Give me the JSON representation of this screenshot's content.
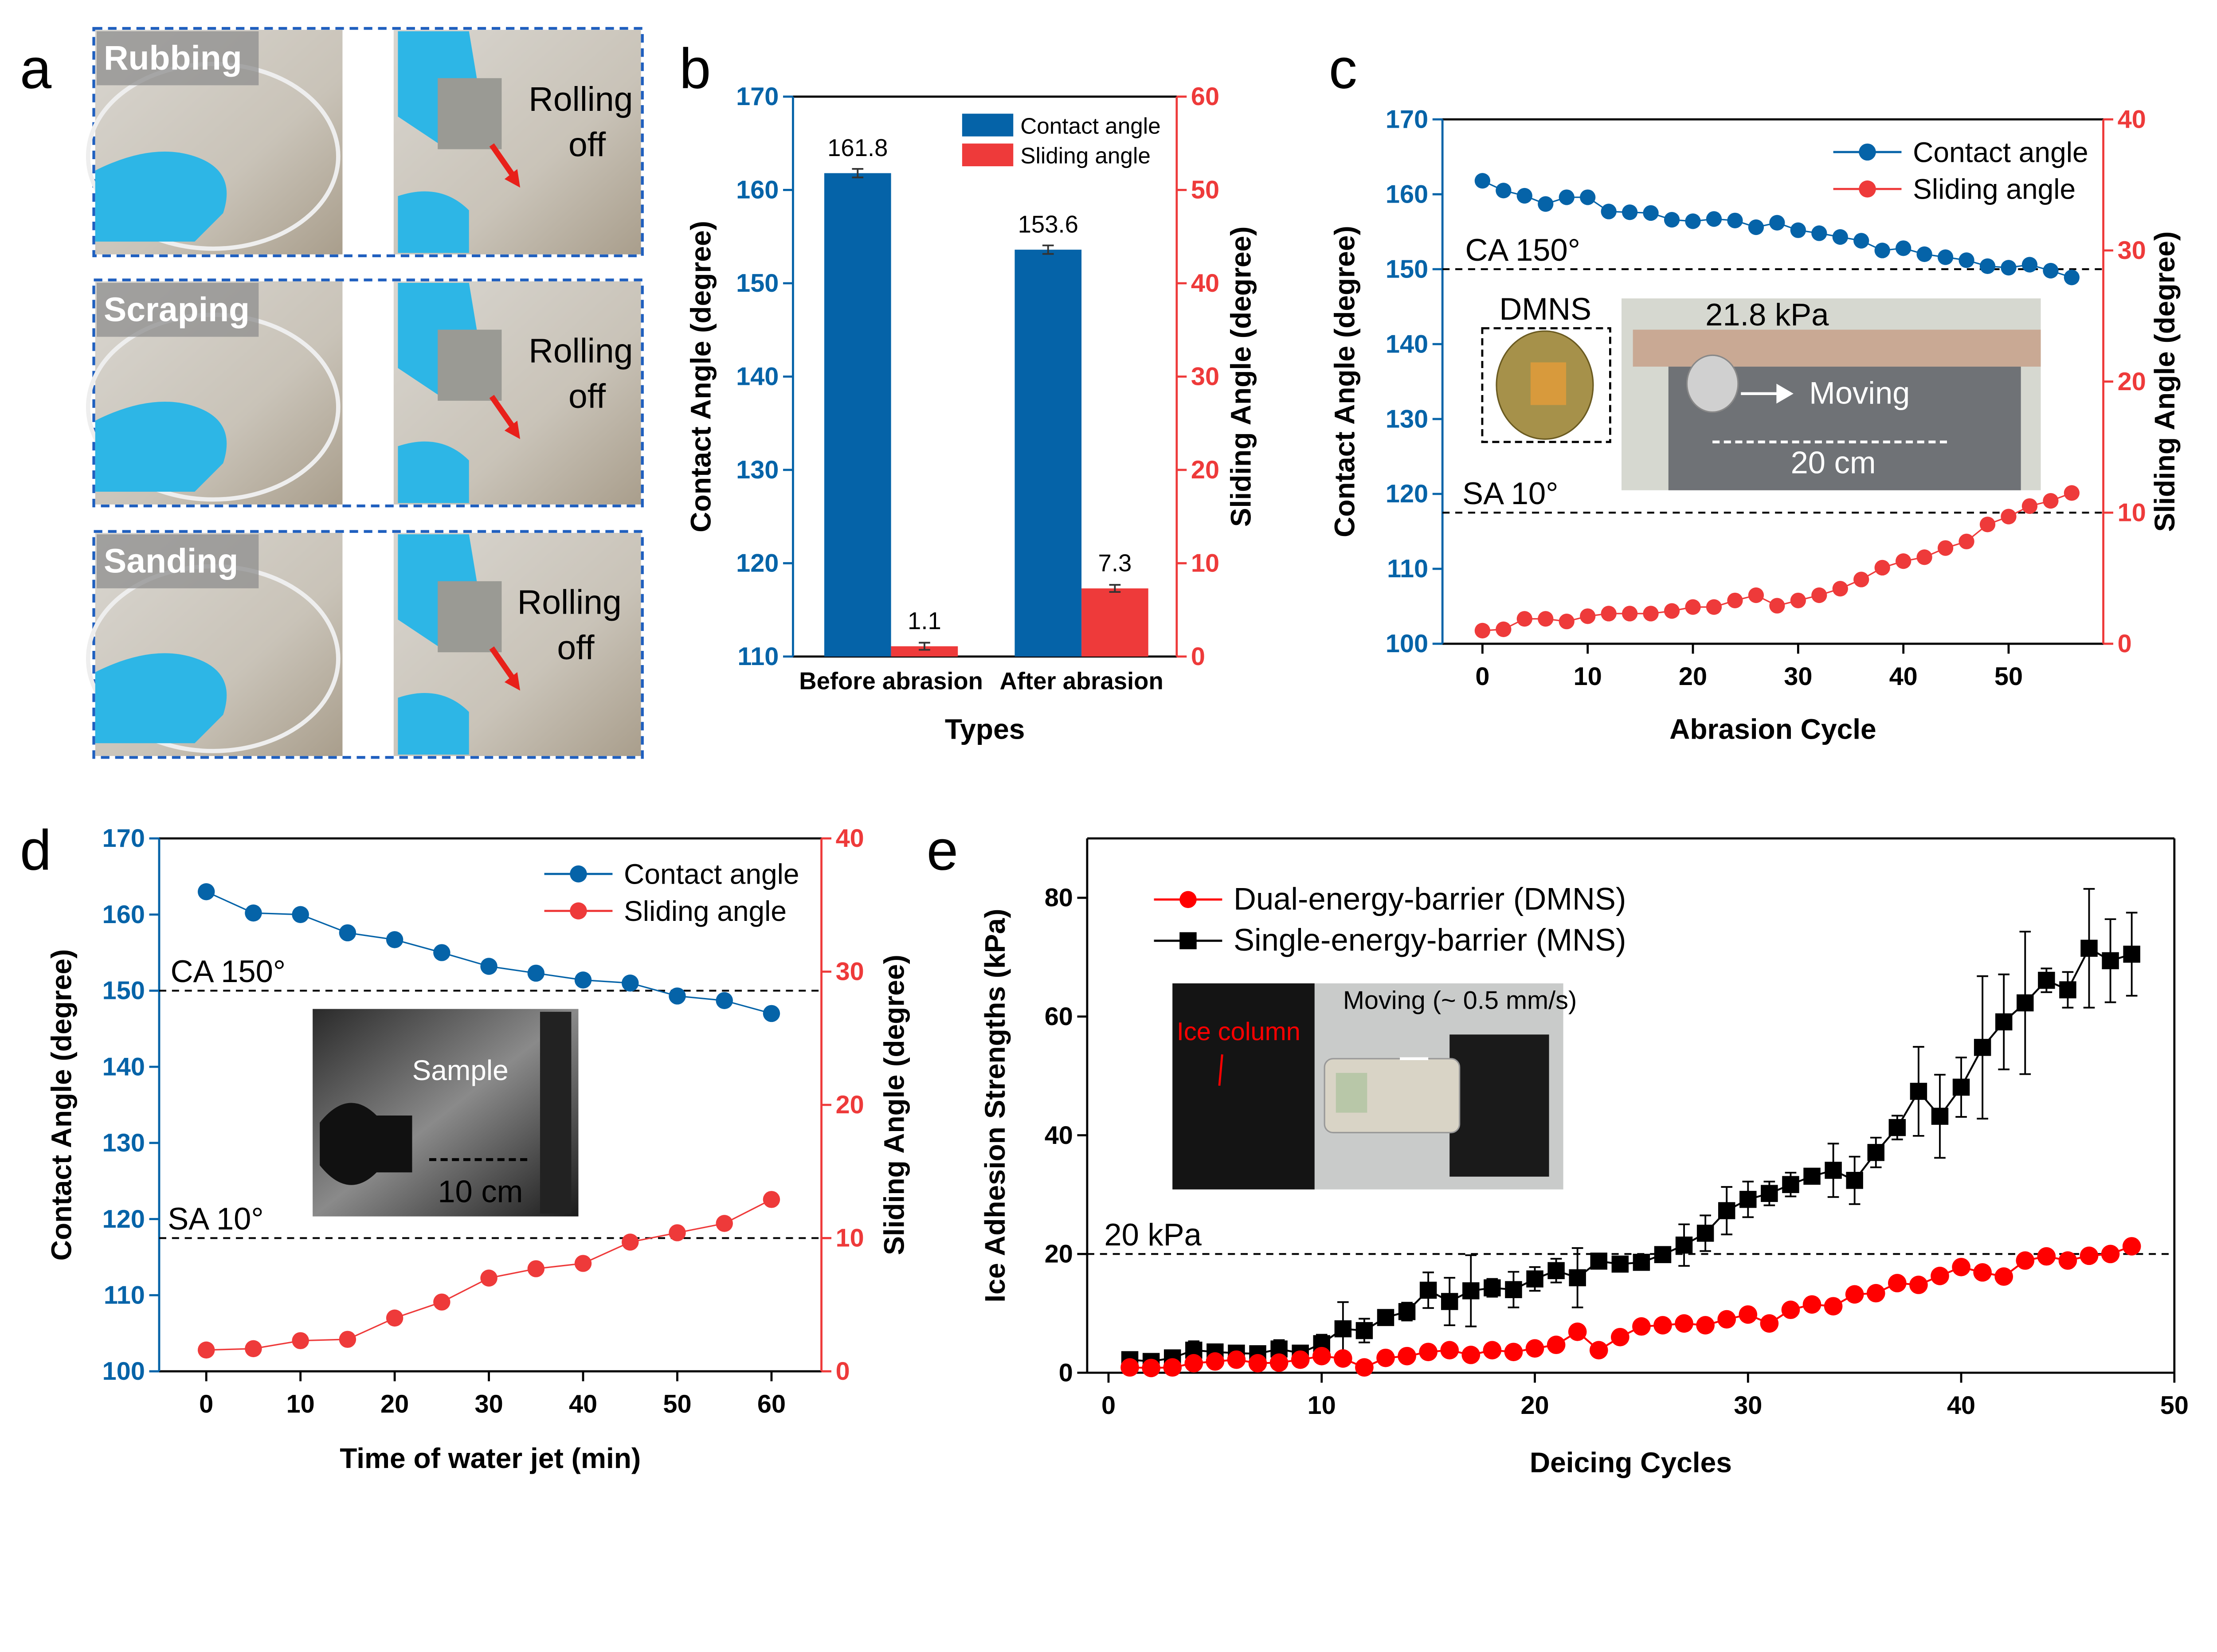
{
  "colors": {
    "blue": "#0563a8",
    "red": "#ee3a3a",
    "bright_red": "#ff0000",
    "black": "#000000",
    "frame_blue": "#1f5fbf"
  },
  "panel_labels": [
    "a",
    "b",
    "c",
    "d",
    "e"
  ],
  "panel_a": {
    "rows": [
      {
        "label": "Rubbing",
        "result_line1": "Rolling",
        "result_line2": "off"
      },
      {
        "label": "Scraping",
        "result_line1": "Rolling",
        "result_line2": "off"
      },
      {
        "label": "Sanding",
        "result_line1": "Rolling",
        "result_line2": "off"
      }
    ]
  },
  "chart_data": [
    {
      "panel": "b",
      "type": "bar",
      "categories": [
        "Before abrasion",
        "After abrasion"
      ],
      "xlabel": "Types",
      "ylabel": "Contact Angle (degree)",
      "y2label": "Sliding Angle (degree)",
      "ylim": [
        110,
        170
      ],
      "y2lim": [
        0,
        60
      ],
      "yticks": [
        "110",
        "120",
        "130",
        "140",
        "150",
        "160",
        "170"
      ],
      "y2ticks": [
        "0",
        "10",
        "20",
        "30",
        "40",
        "50",
        "60"
      ],
      "series": [
        {
          "name": "Contact angle",
          "axis": "left",
          "color": "#0563a8",
          "values": [
            161.8,
            153.6
          ],
          "labels": [
            "161.8",
            "153.6"
          ]
        },
        {
          "name": "Sliding angle",
          "axis": "right",
          "color": "#ee3a3a",
          "values": [
            1.1,
            7.3
          ],
          "labels": [
            "1.1",
            "7.3"
          ]
        }
      ],
      "legend": "top-right"
    },
    {
      "panel": "c",
      "type": "scatter",
      "xlabel": "Abrasion Cycle",
      "ylabel": "Contact Angle (degree)",
      "y2label": "Sliding Angle (degree)",
      "xlim": [
        -3.8,
        59
      ],
      "ylim": [
        100,
        170
      ],
      "y2lim": [
        0,
        40
      ],
      "xticks": [
        "0",
        "10",
        "20",
        "30",
        "40",
        "50"
      ],
      "yticks": [
        "100",
        "110",
        "120",
        "130",
        "140",
        "150",
        "160",
        "170"
      ],
      "y2ticks": [
        "0",
        "10",
        "20",
        "30",
        "40"
      ],
      "x": [
        0,
        2,
        4,
        6,
        8,
        10,
        12,
        14,
        16,
        18,
        20,
        22,
        24,
        26,
        28,
        30,
        32,
        34,
        36,
        38,
        40,
        42,
        44,
        46,
        48,
        50,
        52,
        54,
        56
      ],
      "series": [
        {
          "name": "Contact angle",
          "axis": "left",
          "color": "#0563a8",
          "values": [
            161.8,
            160.5,
            159.8,
            158.7,
            159.6,
            159.6,
            157.7,
            157.6,
            157.5,
            156.6,
            156.4,
            156.7,
            156.5,
            155.6,
            156.2,
            155.2,
            154.8,
            154.3,
            153.8,
            152.5,
            152.8,
            152.0,
            151.6,
            151.2,
            150.4,
            150.2,
            150.6,
            149.8,
            148.9
          ]
        },
        {
          "name": "Sliding angle",
          "axis": "right",
          "color": "#ee3a3a",
          "values": [
            1.0,
            1.1,
            1.9,
            1.9,
            1.7,
            2.1,
            2.3,
            2.3,
            2.3,
            2.5,
            2.8,
            2.8,
            3.3,
            3.7,
            2.9,
            3.3,
            3.7,
            4.2,
            4.9,
            5.8,
            6.3,
            6.6,
            7.3,
            7.8,
            9.1,
            9.7,
            10.5,
            10.9,
            11.5
          ]
        }
      ],
      "reference_lines": [
        {
          "axis": "left",
          "value": 150,
          "label": "CA 150°"
        },
        {
          "axis": "right",
          "value": 10,
          "label": "SA 10°"
        }
      ],
      "inset": {
        "sample_label": "DMNS",
        "pressure": "21.8 kPa",
        "motion": "Moving",
        "distance": "20 cm"
      },
      "legend": "top-right"
    },
    {
      "panel": "d",
      "type": "scatter",
      "xlabel": "Time of water jet (min)",
      "ylabel": "Contact Angle (degree)",
      "y2label": "Sliding Angle (degree)",
      "xlim": [
        -5,
        65.3
      ],
      "ylim": [
        100,
        170
      ],
      "y2lim": [
        0,
        40
      ],
      "xticks": [
        "0",
        "10",
        "20",
        "30",
        "40",
        "50",
        "60"
      ],
      "yticks": [
        "100",
        "110",
        "120",
        "130",
        "140",
        "150",
        "160",
        "170"
      ],
      "y2ticks": [
        "0",
        "10",
        "20",
        "30",
        "40"
      ],
      "x": [
        0,
        5,
        10,
        15,
        20,
        25,
        30,
        35,
        40,
        45,
        50,
        55,
        60
      ],
      "series": [
        {
          "name": "Contact angle",
          "axis": "left",
          "color": "#0563a8",
          "values": [
            163.0,
            160.2,
            160.0,
            157.6,
            156.7,
            155.0,
            153.2,
            152.3,
            151.4,
            151.0,
            149.3,
            148.7,
            147.0
          ]
        },
        {
          "name": "Sliding angle",
          "axis": "right",
          "color": "#ee3a3a",
          "values": [
            1.6,
            1.7,
            2.3,
            2.4,
            4.0,
            5.2,
            7.0,
            7.7,
            8.1,
            9.7,
            10.4,
            11.1,
            12.9
          ]
        }
      ],
      "reference_lines": [
        {
          "axis": "left",
          "value": 150,
          "label": "CA 150°"
        },
        {
          "axis": "right",
          "value": 10,
          "label": "SA 10°"
        }
      ],
      "inset": {
        "sample_label": "Sample",
        "distance": "10 cm"
      },
      "legend": "top-right"
    },
    {
      "panel": "e",
      "type": "line",
      "xlabel": "Deicing Cycles",
      "ylabel": "Ice Adhesion Strengths (kPa)",
      "xlim": [
        -1,
        50
      ],
      "ylim": [
        0,
        90
      ],
      "xticks": [
        "0",
        "10",
        "20",
        "30",
        "40",
        "50"
      ],
      "yticks": [
        "0",
        "20",
        "40",
        "60",
        "80"
      ],
      "x": [
        1,
        2,
        3,
        4,
        5,
        6,
        7,
        8,
        9,
        10,
        11,
        12,
        13,
        14,
        15,
        16,
        17,
        18,
        19,
        20,
        21,
        22,
        23,
        24,
        25,
        26,
        27,
        28,
        29,
        30,
        31,
        32,
        33,
        34,
        35,
        36,
        37,
        38,
        39,
        40,
        41,
        42,
        43,
        44,
        45,
        46,
        47,
        48
      ],
      "series": [
        {
          "name": "Dual-energy-barrier (DMNS)",
          "color": "#ff0000",
          "marker": "circle",
          "values": [
            0.9,
            0.8,
            0.9,
            1.6,
            1.9,
            2.2,
            1.6,
            1.7,
            2.2,
            2.8,
            2.4,
            0.9,
            2.5,
            2.8,
            3.5,
            3.8,
            3.0,
            3.8,
            3.5,
            4.1,
            4.7,
            6.9,
            3.8,
            6.0,
            7.8,
            8.0,
            8.3,
            8.0,
            9.0,
            9.8,
            8.3,
            10.6,
            11.5,
            11.2,
            13.2,
            13.4,
            15.1,
            14.8,
            16.3,
            17.8,
            16.9,
            16.2,
            18.9,
            19.6,
            18.9,
            19.7,
            20.0,
            21.3
          ]
        },
        {
          "name": "Single-energy-barrier (MNS)",
          "color": "#000000",
          "marker": "square",
          "values": [
            2.2,
            1.9,
            2.5,
            3.8,
            3.5,
            3.3,
            3.2,
            4.0,
            3.3,
            4.9,
            7.4,
            7.1,
            9.3,
            10.3,
            13.9,
            12.0,
            13.8,
            14.3,
            14.0,
            15.8,
            17.2,
            16.0,
            18.8,
            18.3,
            18.6,
            19.9,
            21.5,
            23.5,
            27.3,
            29.2,
            30.2,
            31.7,
            33.1,
            34.1,
            32.4,
            37.1,
            41.3,
            47.4,
            43.2,
            48.1,
            54.8,
            59.1,
            62.3,
            66.1,
            64.5,
            71.5,
            69.4,
            70.5
          ]
        }
      ],
      "reference_lines": [
        {
          "value": 20,
          "label": "20 kPa"
        }
      ],
      "inset": {
        "motion": "Moving (~ 0.5 mm/s)",
        "ice_label": "Ice column"
      },
      "legend": "top-left"
    }
  ]
}
